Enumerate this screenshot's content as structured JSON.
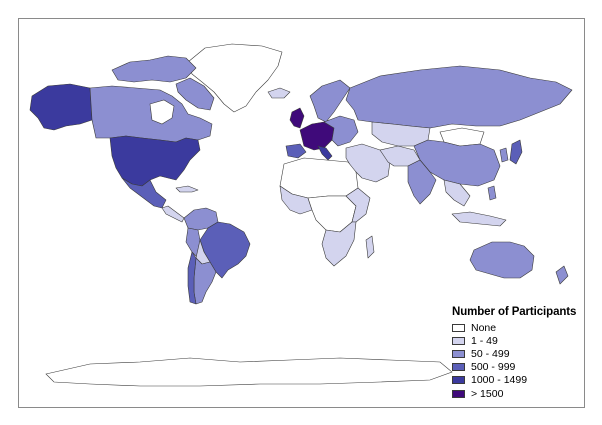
{
  "legend": {
    "title": "Number of Participants",
    "items": [
      {
        "label": "None",
        "color": "#ffffff"
      },
      {
        "label": "1 - 49",
        "color": "#d3d4ee"
      },
      {
        "label": "50 - 499",
        "color": "#8c8fd1"
      },
      {
        "label": "500 - 999",
        "color": "#5b5fb8"
      },
      {
        "label": "1000 - 1499",
        "color": "#3b3a9e"
      },
      {
        "label": "> 1500",
        "color": "#3f0a7a"
      }
    ]
  },
  "regions": [
    {
      "name": "Canada",
      "category": "50 - 499"
    },
    {
      "name": "Alaska",
      "category": "1000 - 1499"
    },
    {
      "name": "United States",
      "category": "1000 - 1499"
    },
    {
      "name": "Mexico",
      "category": "500 - 999"
    },
    {
      "name": "Greenland",
      "category": "None"
    },
    {
      "name": "Brazil",
      "category": "500 - 999"
    },
    {
      "name": "Russia",
      "category": "50 - 499"
    },
    {
      "name": "China",
      "category": "50 - 499"
    },
    {
      "name": "Australia",
      "category": "50 - 499"
    },
    {
      "name": "Western Europe",
      "category": "> 1500"
    },
    {
      "name": "Africa",
      "category": "1 - 49"
    },
    {
      "name": "India",
      "category": "50 - 499"
    },
    {
      "name": "Japan",
      "category": "500 - 999"
    }
  ]
}
